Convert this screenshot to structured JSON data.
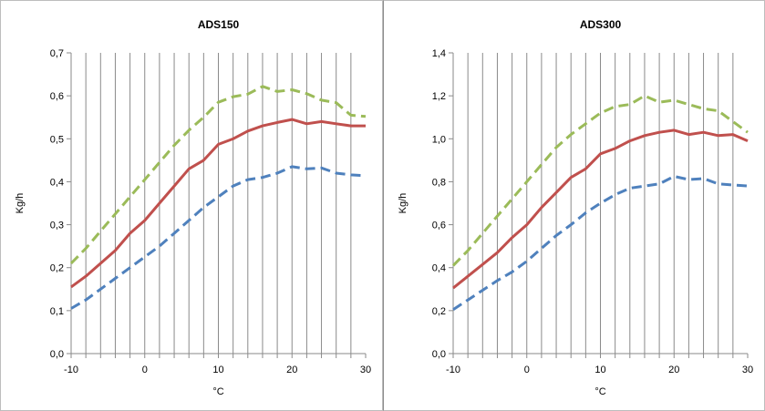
{
  "chart_data": [
    {
      "type": "line",
      "title": "ADS150",
      "xlabel": "°C",
      "ylabel": "Kg/h",
      "xlim": [
        -10,
        30
      ],
      "ylim": [
        0,
        0.7
      ],
      "x_ticks": [
        -10,
        0,
        10,
        20,
        30
      ],
      "y_ticks": [
        "0,0",
        "0,1",
        "0,2",
        "0,3",
        "0,4",
        "0,5",
        "0,6",
        "0,7"
      ],
      "grid": "vertical",
      "legend": "none",
      "series": [
        {
          "color": "#9BBB59",
          "style": "dashed",
          "x": [
            -10,
            -8,
            -6,
            -4,
            -2,
            0,
            2,
            4,
            6,
            8,
            10,
            12,
            14,
            16,
            18,
            20,
            22,
            24,
            26,
            28,
            30
          ],
          "values": [
            0.21,
            0.245,
            0.285,
            0.325,
            0.365,
            0.405,
            0.445,
            0.485,
            0.52,
            0.55,
            0.585,
            0.598,
            0.604,
            0.622,
            0.61,
            0.614,
            0.605,
            0.59,
            0.584,
            0.555,
            0.552
          ]
        },
        {
          "color": "#C0504D",
          "style": "solid",
          "x": [
            -10,
            -8,
            -6,
            -4,
            -2,
            0,
            2,
            4,
            6,
            8,
            10,
            12,
            14,
            16,
            18,
            20,
            22,
            24,
            26,
            28,
            30
          ],
          "values": [
            0.155,
            0.18,
            0.21,
            0.24,
            0.28,
            0.31,
            0.35,
            0.39,
            0.43,
            0.45,
            0.487,
            0.5,
            0.518,
            0.53,
            0.538,
            0.545,
            0.535,
            0.54,
            0.535,
            0.53,
            0.53
          ]
        },
        {
          "color": "#4F81BD",
          "style": "dashed",
          "x": [
            -10,
            -8,
            -6,
            -4,
            -2,
            0,
            2,
            4,
            6,
            8,
            10,
            12,
            14,
            16,
            18,
            20,
            22,
            24,
            26,
            28,
            30
          ],
          "values": [
            0.105,
            0.125,
            0.15,
            0.175,
            0.2,
            0.225,
            0.25,
            0.28,
            0.31,
            0.34,
            0.365,
            0.39,
            0.405,
            0.41,
            0.42,
            0.435,
            0.43,
            0.432,
            0.42,
            0.416,
            0.414
          ]
        }
      ]
    },
    {
      "type": "line",
      "title": "ADS300",
      "xlabel": "°C",
      "ylabel": "Kg/h",
      "xlim": [
        -10,
        30
      ],
      "ylim": [
        0,
        1.4
      ],
      "x_ticks": [
        -10,
        0,
        10,
        20,
        30
      ],
      "y_ticks": [
        "0,0",
        "0,2",
        "0,4",
        "0,6",
        "0,8",
        "1,0",
        "1,2",
        "1,4"
      ],
      "grid": "vertical",
      "legend": "none",
      "series": [
        {
          "color": "#9BBB59",
          "style": "dashed",
          "x": [
            -10,
            -8,
            -6,
            -4,
            -2,
            0,
            2,
            4,
            6,
            8,
            10,
            12,
            14,
            16,
            18,
            20,
            22,
            24,
            26,
            28,
            30
          ],
          "values": [
            0.41,
            0.48,
            0.56,
            0.64,
            0.72,
            0.8,
            0.88,
            0.96,
            1.02,
            1.07,
            1.12,
            1.15,
            1.16,
            1.2,
            1.17,
            1.18,
            1.16,
            1.14,
            1.13,
            1.08,
            1.03
          ]
        },
        {
          "color": "#C0504D",
          "style": "solid",
          "x": [
            -10,
            -8,
            -6,
            -4,
            -2,
            0,
            2,
            4,
            6,
            8,
            10,
            12,
            14,
            16,
            18,
            20,
            22,
            24,
            26,
            28,
            30
          ],
          "values": [
            0.305,
            0.36,
            0.415,
            0.47,
            0.54,
            0.6,
            0.68,
            0.75,
            0.82,
            0.86,
            0.93,
            0.955,
            0.99,
            1.015,
            1.03,
            1.04,
            1.02,
            1.03,
            1.015,
            1.02,
            0.99
          ]
        },
        {
          "color": "#4F81BD",
          "style": "dashed",
          "x": [
            -10,
            -8,
            -6,
            -4,
            -2,
            0,
            2,
            4,
            6,
            8,
            10,
            12,
            14,
            16,
            18,
            20,
            22,
            24,
            26,
            28,
            30
          ],
          "values": [
            0.205,
            0.25,
            0.295,
            0.34,
            0.38,
            0.43,
            0.49,
            0.55,
            0.6,
            0.655,
            0.7,
            0.74,
            0.77,
            0.78,
            0.79,
            0.825,
            0.81,
            0.815,
            0.79,
            0.785,
            0.78
          ]
        }
      ]
    }
  ]
}
